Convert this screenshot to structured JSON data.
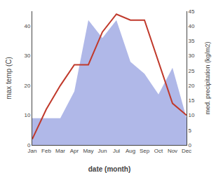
{
  "chart_data": {
    "type": "line",
    "categories": [
      "Jan",
      "Feb",
      "Mar",
      "Apr",
      "May",
      "Jun",
      "Jul",
      "Aug",
      "Sep",
      "Oct",
      "Nov",
      "Dec"
    ],
    "series": [
      {
        "type": "area",
        "color": "#b0b8e8",
        "axis": "y2",
        "values": [
          9,
          9,
          9,
          18,
          42,
          36,
          42,
          28,
          24,
          17,
          26,
          9
        ]
      },
      {
        "type": "line",
        "color": "#c0392b",
        "values": [
          2,
          12,
          20,
          27,
          27,
          38,
          44,
          42,
          42,
          28,
          14,
          10
        ]
      }
    ],
    "xlabel": "date (month)",
    "ylabel": "max temp (C)",
    "y2label": "med. precipitation (kg/m2)",
    "ylim": [
      0,
      45
    ],
    "yticks": [
      0,
      10,
      20,
      30,
      40
    ],
    "y2lim": [
      0,
      45
    ],
    "y2ticks": [
      0,
      5,
      10,
      15,
      20,
      25,
      30,
      35,
      40,
      45
    ],
    "grid": false
  }
}
